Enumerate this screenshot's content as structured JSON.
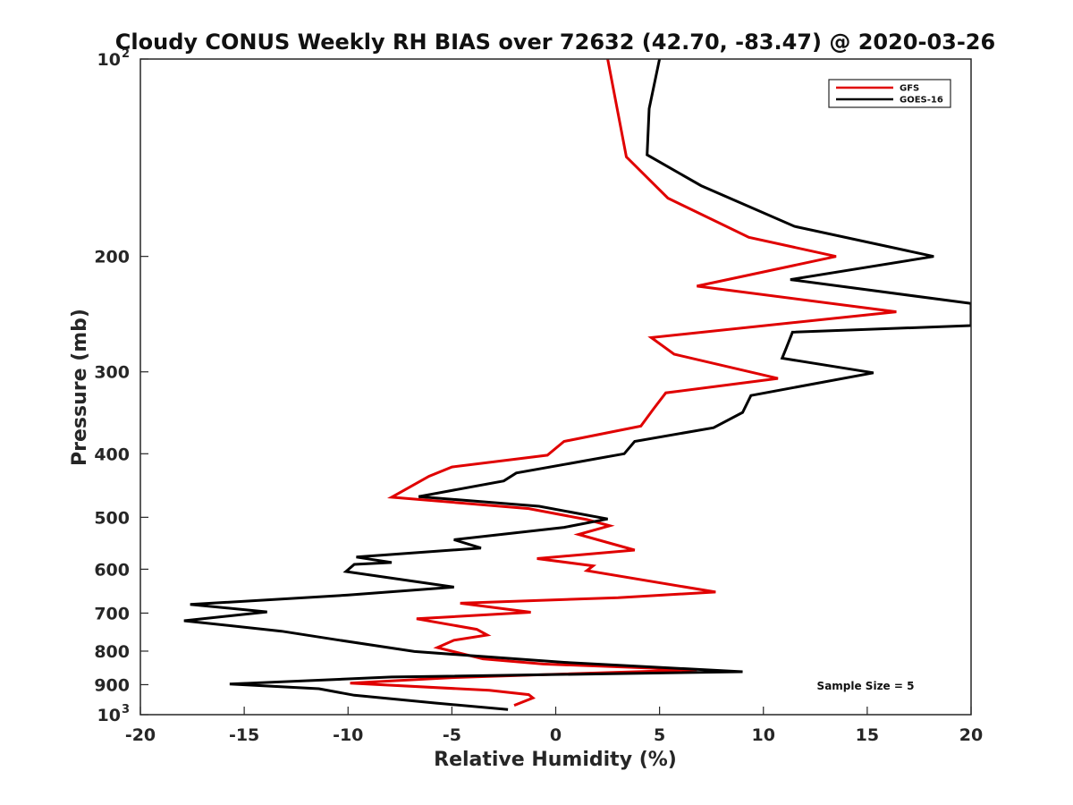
{
  "chart_data": {
    "type": "line",
    "title": "Cloudy CONUS Weekly RH BIAS over 72632 (42.70, -83.47) @ 2020-03-26",
    "xlabel": "Relative Humidity (%)",
    "ylabel": "Pressure (mb)",
    "xlim": [
      -20,
      20
    ],
    "ylim": [
      100,
      1000
    ],
    "y_scale": "log",
    "y_reversed": true,
    "grid": false,
    "legend_position": "top-right",
    "annotation": "Sample Size = 5",
    "x_ticks": [
      {
        "value": -20,
        "label": "-20"
      },
      {
        "value": -15,
        "label": "-15"
      },
      {
        "value": -10,
        "label": "-10"
      },
      {
        "value": -5,
        "label": "-5"
      },
      {
        "value": 0,
        "label": "0"
      },
      {
        "value": 5,
        "label": "5"
      },
      {
        "value": 10,
        "label": "10"
      },
      {
        "value": 15,
        "label": "15"
      },
      {
        "value": 20,
        "label": "20"
      }
    ],
    "y_ticks": [
      {
        "value": 100,
        "base": "10",
        "exp": "2"
      },
      {
        "value": 200,
        "label": "200"
      },
      {
        "value": 300,
        "label": "300"
      },
      {
        "value": 400,
        "label": "400"
      },
      {
        "value": 500,
        "label": "500"
      },
      {
        "value": 600,
        "label": "600"
      },
      {
        "value": 700,
        "label": "700"
      },
      {
        "value": 800,
        "label": "800"
      },
      {
        "value": 900,
        "label": "900"
      },
      {
        "value": 1000,
        "base": "10",
        "exp": "3"
      }
    ],
    "series": [
      {
        "name": "GFS",
        "color": "#e00000",
        "points": [
          [
            2.5,
            100
          ],
          [
            3.4,
            141
          ],
          [
            5.4,
            163
          ],
          [
            9.3,
            187
          ],
          [
            13.5,
            200
          ],
          [
            6.8,
            222
          ],
          [
            16.4,
            243
          ],
          [
            4.6,
            266
          ],
          [
            5.7,
            282
          ],
          [
            10.7,
            307
          ],
          [
            5.3,
            323
          ],
          [
            4.7,
            342
          ],
          [
            4.1,
            363
          ],
          [
            0.4,
            383
          ],
          [
            -0.4,
            402
          ],
          [
            -5.0,
            419
          ],
          [
            -6.1,
            433
          ],
          [
            -7.9,
            466
          ],
          [
            -1.3,
            485
          ],
          [
            1.5,
            504
          ],
          [
            2.6,
            515
          ],
          [
            1.1,
            531
          ],
          [
            3.8,
            561
          ],
          [
            -0.9,
            578
          ],
          [
            1.8,
            593
          ],
          [
            1.5,
            603
          ],
          [
            7.7,
            650
          ],
          [
            3.0,
            663
          ],
          [
            -4.6,
            676
          ],
          [
            -1.2,
            698
          ],
          [
            -6.7,
            714
          ],
          [
            -3.8,
            741
          ],
          [
            -3.3,
            756
          ],
          [
            -4.9,
            770
          ],
          [
            -5.7,
            790
          ],
          [
            -3.5,
            822
          ],
          [
            -0.6,
            837
          ],
          [
            6.8,
            854
          ],
          [
            -5.0,
            878
          ],
          [
            -9.9,
            895
          ],
          [
            -3.2,
            918
          ],
          [
            -1.3,
            932
          ],
          [
            -1.1,
            943
          ],
          [
            -2.0,
            968
          ]
        ]
      },
      {
        "name": "GOES-16",
        "color": "#000000",
        "points": [
          [
            5.0,
            100
          ],
          [
            4.5,
            119
          ],
          [
            4.4,
            140
          ],
          [
            7.0,
            156
          ],
          [
            11.5,
            180
          ],
          [
            18.2,
            200
          ],
          [
            11.3,
            217
          ],
          [
            20.0,
            236
          ],
          [
            20.0,
            255
          ],
          [
            11.4,
            261
          ],
          [
            11.1,
            276
          ],
          [
            10.9,
            286
          ],
          [
            15.3,
            301
          ],
          [
            9.4,
            326
          ],
          [
            9.0,
            346
          ],
          [
            7.6,
            365
          ],
          [
            3.8,
            383
          ],
          [
            3.3,
            400
          ],
          [
            -1.9,
            428
          ],
          [
            -2.5,
            440
          ],
          [
            -6.6,
            465
          ],
          [
            -0.8,
            481
          ],
          [
            2.5,
            503
          ],
          [
            0.4,
            518
          ],
          [
            -4.9,
            541
          ],
          [
            -3.6,
            557
          ],
          [
            -9.6,
            575
          ],
          [
            -7.9,
            586
          ],
          [
            -9.7,
            590
          ],
          [
            -10.1,
            605
          ],
          [
            -4.9,
            639
          ],
          [
            -10.0,
            657
          ],
          [
            -17.6,
            679
          ],
          [
            -13.9,
            697
          ],
          [
            -17.9,
            719
          ],
          [
            -13.2,
            746
          ],
          [
            -10.4,
            770
          ],
          [
            -6.8,
            801
          ],
          [
            0.4,
            832
          ],
          [
            9.0,
            860
          ],
          [
            -7.9,
            876
          ],
          [
            -15.7,
            898
          ],
          [
            -11.4,
            913
          ],
          [
            -9.7,
            934
          ],
          [
            -5.8,
            960
          ],
          [
            -2.3,
            982
          ]
        ]
      }
    ]
  }
}
